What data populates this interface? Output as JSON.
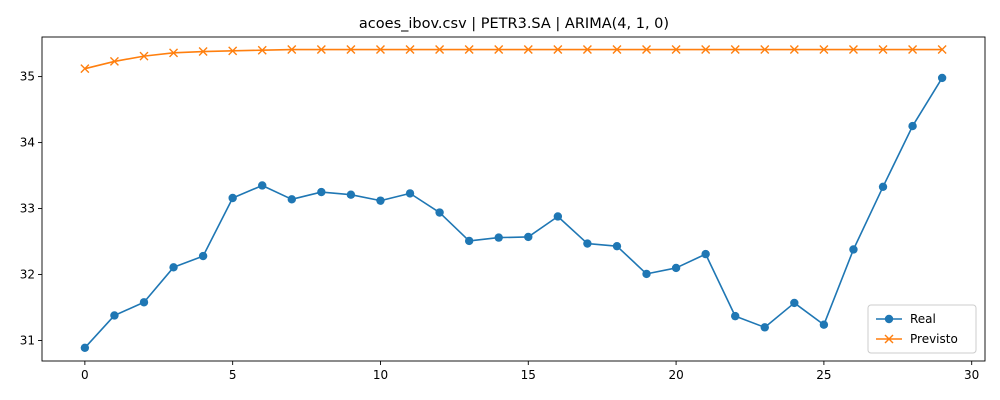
{
  "chart_data": {
    "type": "line",
    "title": "acoes_ibov.csv | PETR3.SA | ARIMA(4, 1, 0)",
    "xlabel": "",
    "ylabel": "",
    "xlim": [
      -1.45,
      30.45
    ],
    "ylim": [
      30.69,
      35.6
    ],
    "xticks": [
      0,
      5,
      10,
      15,
      20,
      25,
      30
    ],
    "yticks": [
      31,
      32,
      33,
      34,
      35
    ],
    "grid": false,
    "legend_position": "bottom-right",
    "x": [
      0,
      1,
      2,
      3,
      4,
      5,
      6,
      7,
      8,
      9,
      10,
      11,
      12,
      13,
      14,
      15,
      16,
      17,
      18,
      19,
      20,
      21,
      22,
      23,
      24,
      25,
      26,
      27,
      28,
      29
    ],
    "series": [
      {
        "name": "Real",
        "marker": "circle",
        "color": "#1f77b4",
        "values": [
          30.89,
          31.38,
          31.58,
          32.11,
          32.28,
          33.16,
          33.35,
          33.14,
          33.25,
          33.21,
          33.12,
          33.23,
          32.94,
          32.51,
          32.56,
          32.57,
          32.88,
          32.47,
          32.43,
          32.01,
          32.1,
          32.31,
          31.37,
          31.2,
          31.57,
          31.24,
          32.38,
          33.33,
          34.25,
          34.98
        ]
      },
      {
        "name": "Previsto",
        "marker": "x",
        "color": "#ff7f0e",
        "values": [
          35.12,
          35.23,
          35.31,
          35.36,
          35.38,
          35.39,
          35.4,
          35.41,
          35.41,
          35.41,
          35.41,
          35.41,
          35.41,
          35.41,
          35.41,
          35.41,
          35.41,
          35.41,
          35.41,
          35.41,
          35.41,
          35.41,
          35.41,
          35.41,
          35.41,
          35.41,
          35.41,
          35.41,
          35.41,
          35.41
        ]
      }
    ]
  }
}
